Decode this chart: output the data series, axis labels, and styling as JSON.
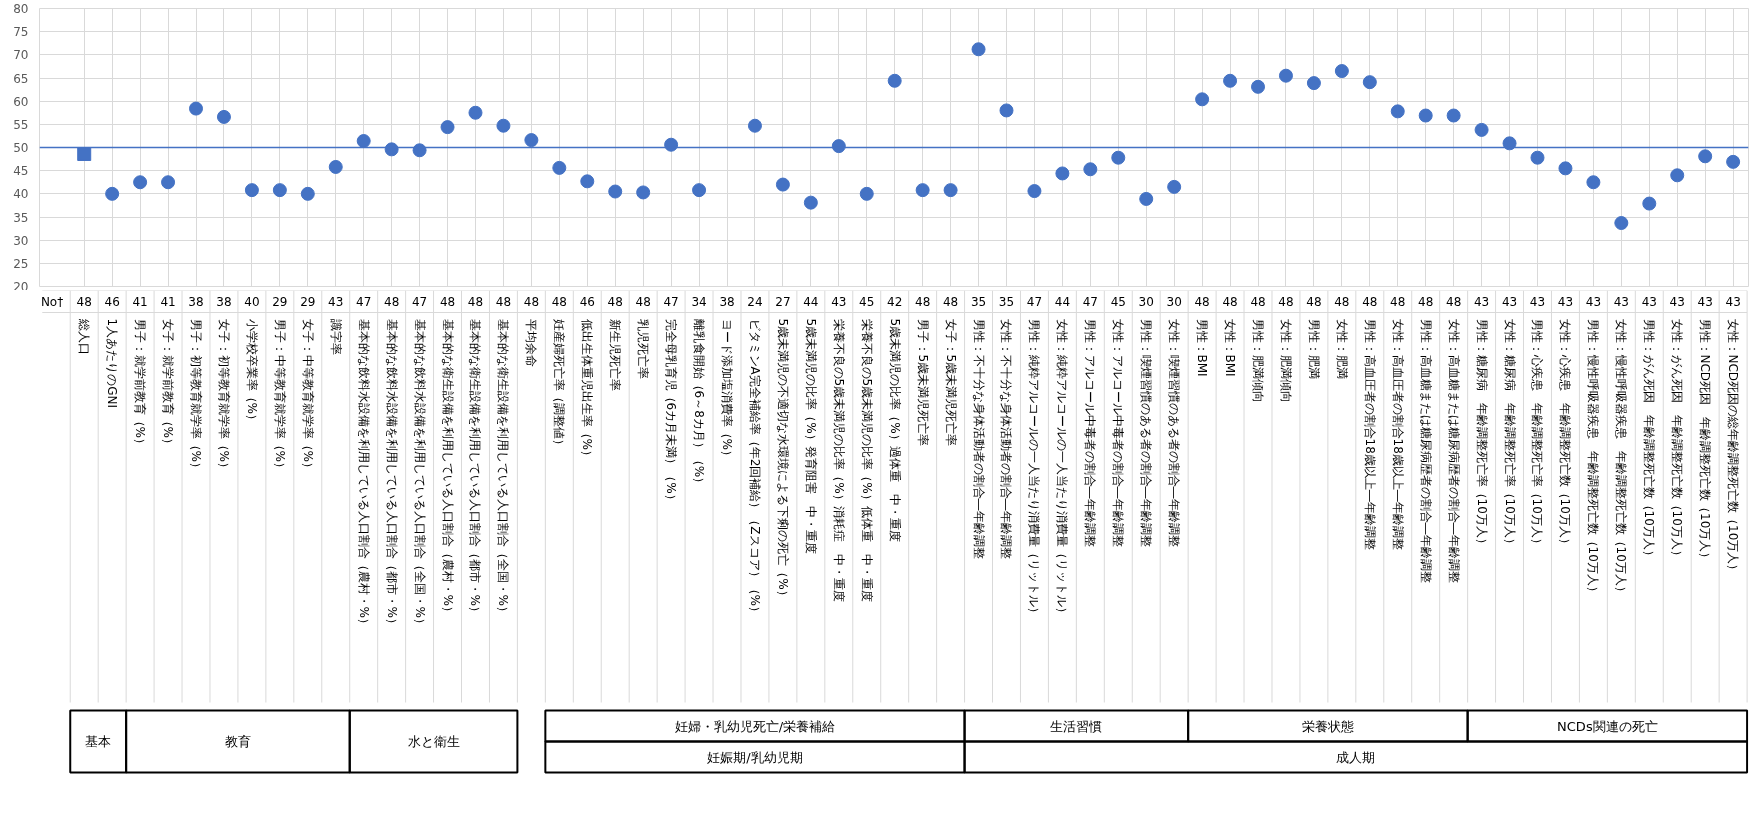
{
  "chart_data": {
    "type": "scatter",
    "categories": [
      "総人口",
      "1人あたりのGNI",
      "男子：就学前教育（%）",
      "女子：就学前教育（%）",
      "男子：初等教育就学率（%）",
      "女子：初等教育就学率（%）",
      "小学校卒業率（%）",
      "男子：中等教育就学率（%）",
      "女子：中等教育就学率（%）",
      "識字率",
      "基本的な飲料水設備を利用している人口割合（農村・%）",
      "基本的な飲料水設備を利用している人口割合（都市・%）",
      "基本的な飲料水設備を利用している人口割合（全国・%）",
      "基本的な衛生設備を利用している人口割合（農村・%）",
      "基本的な衛生設備を利用している人口割合（都市・%）",
      "基本的な衛生設備を利用している人口割合（全国・%）",
      "平均余命",
      "妊産婦死亡率（調整値）",
      "低出生体重児出生率（%）",
      "新生児死亡率",
      "乳児死亡率",
      "完全母乳育児（6カ月未満）（%）",
      "離乳食開始（6～8カ月）（%）",
      "ヨード添加塩消費率（%）",
      "ビタミンA完全補給率（年2回補給）（Zスコア）（%）",
      "5歳未満児の不適切な水環境による下痢の死亡（%）",
      "5歳未満児の比率（%）発育阻害　中・重度",
      "栄養不良の5歳未満児の比率（%）消耗症　中・重度",
      "栄養不良の5歳未満児の比率（%）低体重　中・重度",
      "5歳未満児の比率（%）過体重　中・重度",
      "男子：5歳未満児死亡率",
      "女子：5歳未満児死亡率",
      "男性：不十分な身体活動者の割合―年齢調整",
      "女性：不十分な身体活動者の割合―年齢調整",
      "男性：純粋アルコールの一人当たり消費量（リットル）",
      "女性：純粋アルコールの一人当たり消費量（リットル）",
      "男性：アルコール中毒者の割合―年齢調整",
      "女性：アルコール中毒者の割合―年齢調整",
      "男性：喫煙習慣のある者の割合―年齢調整",
      "女性：喫煙習慣のある者の割合―年齢調整",
      "男性：BMI",
      "女性：BMI",
      "男性：肥満傾向",
      "女性：肥満傾向",
      "男性：肥満",
      "女性：肥満",
      "男性：高血圧者の割合18歳以上―年齢調整",
      "女性：高血圧者の割合18歳以上―年齢調整",
      "男性：高血糖または糖尿病歴者の割合―年齢調整",
      "女性：高血糖または糖尿病歴者の割合―年齢調整",
      "男性：糖尿病　年齢調整死亡率（10万人）",
      "女性：糖尿病　年齢調整死亡率（10万人）",
      "男性：心疾患　年齢調整死亡率（10万人）",
      "女性：心疾患　年齢調整死亡数（10万人）",
      "男性：慢性呼吸器疾患　年齢調整死亡数（10万人）",
      "女性：慢性呼吸器疾患　年齢調整死亡数（10万人）",
      "男性：がん死因　年齢調整死亡数（10万人）",
      "女性：がん死因　年齢調整死亡数（10万人）",
      "男性：NCD死因　年齢調整死亡数（10万人）",
      "女性：NCD死因の総年齢調整死亡数（10万人）"
    ],
    "series": [
      {
        "color": "#4472c4",
        "marker": "square",
        "values": [
          48.6,
          null,
          null,
          null,
          null,
          null,
          null,
          null,
          null,
          null,
          null,
          null,
          null,
          null,
          null,
          null,
          null,
          null,
          null,
          null,
          null,
          null,
          null,
          null,
          null,
          null,
          null,
          null,
          null,
          null,
          null,
          null,
          null,
          null,
          null,
          null,
          null,
          null,
          null,
          null,
          null,
          null,
          null,
          null,
          null,
          null,
          null,
          null,
          null,
          null,
          null,
          null,
          null,
          null,
          null,
          null,
          null,
          null,
          null,
          null
        ]
      },
      {
        "color": "#4472c4",
        "values": [
          null,
          40,
          42.5,
          42.5,
          58.4,
          56.6,
          40.8,
          40.8,
          40,
          45.8,
          51.4,
          49.6,
          49.4,
          54.4,
          57.5,
          54.7,
          51.6,
          45.6,
          42.7,
          40.5,
          40.3,
          50.6,
          40.8,
          null,
          54.7,
          42,
          38.1,
          50.3,
          40,
          64.4,
          40.8,
          40.8,
          71.2,
          58,
          40.6,
          44.4,
          45.3,
          47.8,
          38.9,
          41.5,
          60.4,
          64.4,
          63.1,
          65.5,
          63.9,
          66.5,
          64.1,
          57.8,
          56.9,
          56.9,
          53.8,
          50.9,
          47.8,
          45.5,
          42.5,
          33.7,
          37.9,
          44,
          48.1,
          46.9
        ]
      }
    ],
    "marker": "circle",
    "ylim": [
      20,
      80
    ],
    "yticks": [
      20,
      25,
      30,
      35,
      40,
      45,
      50,
      55,
      60,
      65,
      70,
      75,
      80
    ],
    "grid": true,
    "ref_lines": [
      {
        "axis": "y",
        "value": 50,
        "color": "#4472c4"
      }
    ],
    "annotations": [
      "No†",
      "48",
      "46",
      "41",
      "41",
      "38",
      "38",
      "40",
      "29",
      "29",
      "43",
      "47",
      "48",
      "47",
      "48",
      "48",
      "48",
      "48",
      "48",
      "46",
      "48",
      "48",
      "47",
      "34",
      "38",
      "24",
      "27",
      "44",
      "43",
      "45",
      "42",
      "48",
      "48",
      "35",
      "35",
      "47",
      "44",
      "47",
      "45",
      "30",
      "30",
      "48",
      "48",
      "48",
      "48",
      "48",
      "48",
      "48",
      "48",
      "48",
      "48",
      "43",
      "43",
      "43",
      "43",
      "43",
      "43",
      "43",
      "43",
      "43",
      "43",
      "基本",
      "教育",
      "水と衛生",
      "妊婦・乳幼児死亡/栄養補給",
      "妊娠期/乳幼児期",
      "生活習慣",
      "栄養状態",
      "NCDs関連の死亡",
      "成人期"
    ]
  }
}
